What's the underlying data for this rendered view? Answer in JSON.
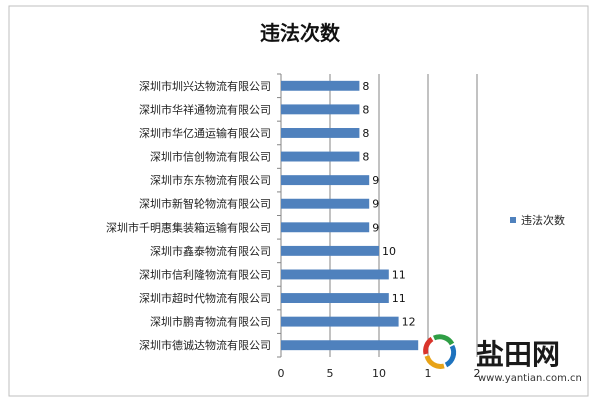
{
  "chart_data": {
    "type": "bar",
    "orientation": "horizontal",
    "title": "违法次数",
    "categories": [
      "深圳市德诚达物流有限公司",
      "深圳市鹏青物流有限公司",
      "深圳市超时代物流有限公司",
      "深圳市信利隆物流有限公司",
      "深圳市鑫泰物流有限公司",
      "深圳市千明惠集装箱运输有限公司",
      "深圳市新智轮物流有限公司",
      "深圳市东东物流有限公司",
      "深圳市信创物流有限公司",
      "深圳市华亿通运输有限公司",
      "深圳市华祥通物流有限公司",
      "深圳市圳兴达物流有限公司"
    ],
    "series": [
      {
        "name": "违法次数",
        "values": [
          14,
          12,
          11,
          11,
          10,
          9,
          9,
          9,
          8,
          8,
          8,
          8
        ]
      }
    ],
    "data_labels": [
      "",
      "12",
      "11",
      "11",
      "10",
      "9",
      "9",
      "9",
      "8",
      "8",
      "8",
      "8"
    ],
    "xlim": [
      0,
      20
    ],
    "xticks": [
      "0",
      "5",
      "10",
      "15",
      "20"
    ],
    "xticks_visible": [
      "0",
      "5",
      "10",
      "1",
      "2"
    ],
    "grid": "vertical major gridlines",
    "legend_position": "right",
    "colors": {
      "bar": "#4F81BD",
      "grid": "#868686",
      "frame": "#bfbfbf"
    }
  },
  "watermark": {
    "text": "盐田网",
    "url": "www.yantian.com.cn",
    "logo_colors": [
      "#2f9e45",
      "#1e73be",
      "#e8a317",
      "#d9342b"
    ]
  }
}
